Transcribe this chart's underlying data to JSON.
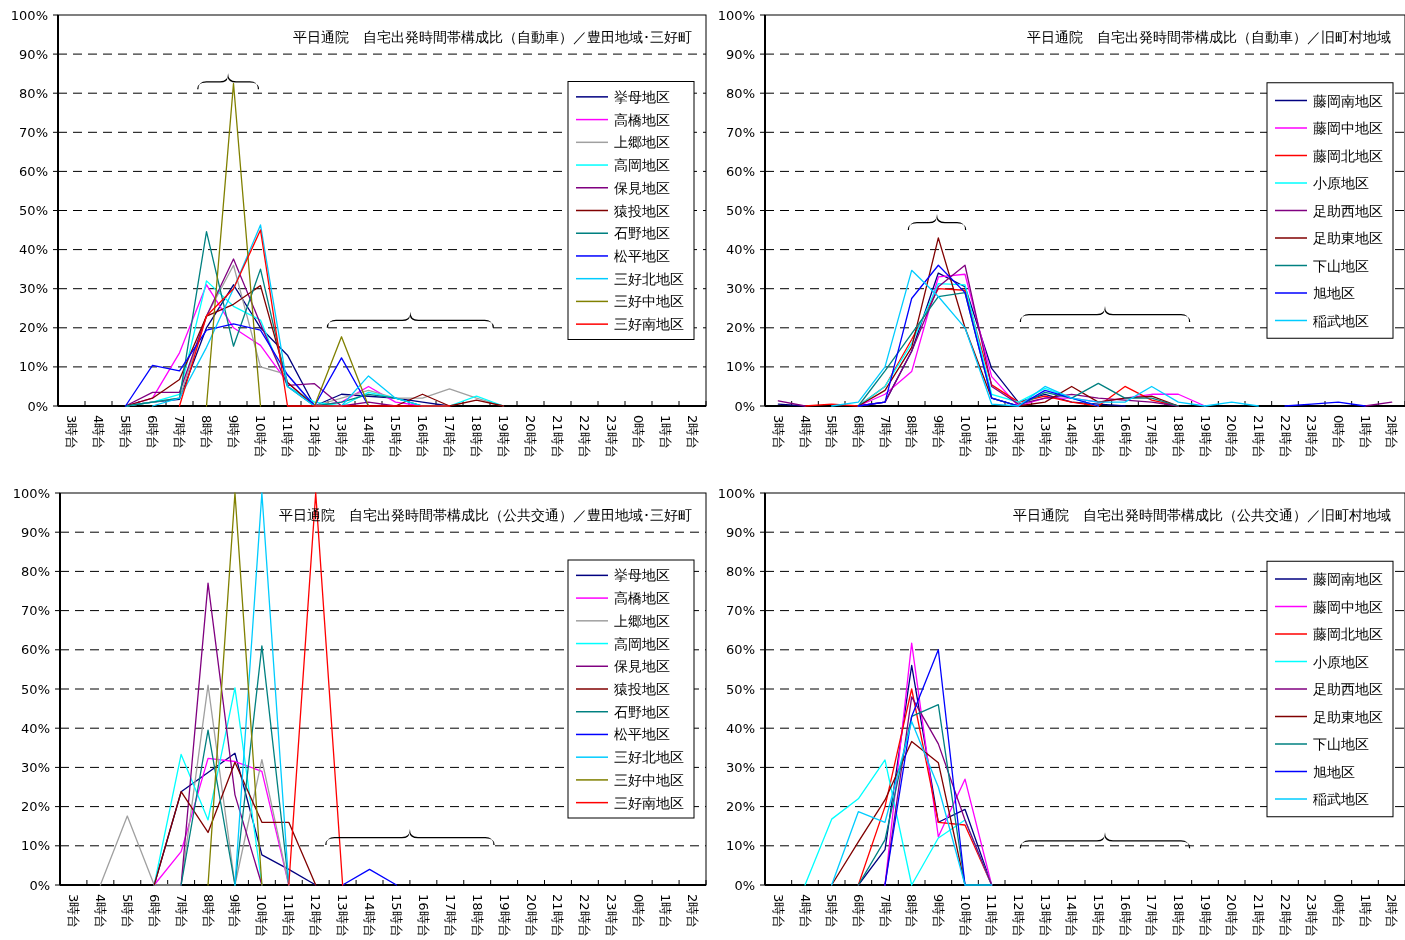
{
  "chart_data": [
    {
      "type": "line",
      "title": "平日通院　自宅出発時間帯構成比（自動車）／豊田地域･三好町",
      "categories": [
        "3時台",
        "4時台",
        "5時台",
        "6時台",
        "7時台",
        "8時台",
        "9時台",
        "10時台",
        "11時台",
        "12時台",
        "13時台",
        "14時台",
        "15時台",
        "16時台",
        "17時台",
        "18時台",
        "19時台",
        "20時台",
        "21時台",
        "22時台",
        "23時台",
        "0時台",
        "1時台",
        "2時台"
      ],
      "ylim": [
        0,
        100
      ],
      "yticks": [
        {
          "value": 0,
          "label": "0%"
        },
        {
          "value": 10,
          "label": "10%"
        },
        {
          "value": 20,
          "label": "20%"
        },
        {
          "value": 30,
          "label": "30%"
        },
        {
          "value": 40,
          "label": "40%"
        },
        {
          "value": 50,
          "label": "50%"
        },
        {
          "value": 60,
          "label": "60%"
        },
        {
          "value": 70,
          "label": "70%"
        },
        {
          "value": 80,
          "label": "80%"
        },
        {
          "value": 90,
          "label": "90%"
        },
        {
          "value": 100,
          "label": "100%"
        }
      ],
      "grid": "y",
      "legend": "right",
      "series": [
        {
          "name": "挙母地区",
          "color": "#000080",
          "values": [
            null,
            null,
            0,
            1,
            1.7,
            20,
            31,
            20,
            13,
            0,
            3,
            2.5,
            2,
            1,
            0,
            null,
            null,
            null,
            null,
            null,
            null,
            null,
            null,
            null
          ]
        },
        {
          "name": "高橋地区",
          "color": "#ff00ff",
          "values": [
            null,
            null,
            0,
            2,
            13.6,
            31,
            20,
            15.5,
            6,
            0,
            1,
            5,
            1,
            0,
            null,
            null,
            null,
            null,
            null,
            null,
            null,
            null,
            null,
            null
          ]
        },
        {
          "name": "上郷地区",
          "color": "#a0a0a0",
          "values": [
            null,
            null,
            0,
            1,
            2,
            23,
            36,
            10,
            8,
            0,
            2,
            4,
            2,
            2,
            4.4,
            2,
            0,
            null,
            null,
            null,
            null,
            null,
            null,
            null
          ]
        },
        {
          "name": "高岡地区",
          "color": "#00ffff",
          "values": [
            null,
            null,
            0,
            1,
            3,
            32,
            25.5,
            22,
            5,
            1,
            0,
            3.5,
            2,
            0,
            0,
            2.5,
            0,
            null,
            null,
            null,
            null,
            null,
            null,
            null
          ]
        },
        {
          "name": "保見地区",
          "color": "#800080",
          "values": [
            null,
            null,
            0,
            3.5,
            3.5,
            23,
            37.6,
            21,
            5.3,
            5.7,
            0,
            1,
            0,
            null,
            null,
            null,
            null,
            null,
            null,
            null,
            null,
            null,
            null,
            null
          ]
        },
        {
          "name": "猿投地区",
          "color": "#800000",
          "values": [
            null,
            null,
            0,
            2,
            6.8,
            23,
            26,
            30.8,
            6,
            0,
            null,
            null,
            0,
            3,
            0,
            1.5,
            0,
            null,
            null,
            null,
            null,
            null,
            null,
            null
          ]
        },
        {
          "name": "石野地区",
          "color": "#008080",
          "values": [
            null,
            null,
            0,
            1,
            2,
            44.6,
            15.3,
            35,
            5,
            0,
            1,
            3,
            2,
            0,
            null,
            null,
            null,
            null,
            null,
            null,
            null,
            null,
            null,
            null
          ]
        },
        {
          "name": "松平地区",
          "color": "#0000ff",
          "values": [
            null,
            null,
            0,
            10.4,
            9,
            19.4,
            21,
            19.4,
            8,
            0,
            12.3,
            0,
            null,
            null,
            null,
            null,
            null,
            null,
            null,
            null,
            null,
            null,
            null,
            null
          ]
        },
        {
          "name": "三好北地区",
          "color": "#00ccff",
          "values": [
            null,
            null,
            null,
            0,
            2,
            15,
            30,
            46.3,
            5,
            0,
            0,
            7.7,
            2,
            0,
            null,
            null,
            null,
            null,
            null,
            null,
            null,
            null,
            null,
            null
          ]
        },
        {
          "name": "三好中地区",
          "color": "#808000",
          "values": [
            null,
            null,
            null,
            null,
            null,
            0,
            82.5,
            0,
            null,
            0,
            17.7,
            0,
            null,
            null,
            null,
            null,
            null,
            null,
            null,
            null,
            null,
            null,
            null,
            null
          ]
        },
        {
          "name": "三好南地区",
          "color": "#ff0000",
          "values": [
            null,
            null,
            null,
            null,
            0,
            23,
            30,
            45,
            0,
            0,
            0,
            0,
            0,
            0,
            0,
            null,
            null,
            null,
            null,
            null,
            null,
            null,
            null,
            null
          ]
        }
      ]
    },
    {
      "type": "line",
      "title": "平日通院　自宅出発時間帯構成比（自動車）／旧町村地域",
      "categories": [
        "3時台",
        "4時台",
        "5時台",
        "6時台",
        "7時台",
        "8時台",
        "9時台",
        "10時台",
        "11時台",
        "12時台",
        "13時台",
        "14時台",
        "15時台",
        "16時台",
        "17時台",
        "18時台",
        "19時台",
        "20時台",
        "21時台",
        "22時台",
        "23時台",
        "0時台",
        "1時台",
        "2時台"
      ],
      "ylim": [
        0,
        100
      ],
      "yticks": [
        {
          "value": 0,
          "label": "0%"
        },
        {
          "value": 10,
          "label": "10%"
        },
        {
          "value": 20,
          "label": "20%"
        },
        {
          "value": 30,
          "label": "30%"
        },
        {
          "value": 40,
          "label": "40%"
        },
        {
          "value": 50,
          "label": "50%"
        },
        {
          "value": 60,
          "label": "60%"
        },
        {
          "value": 70,
          "label": "70%"
        },
        {
          "value": 80,
          "label": "80%"
        },
        {
          "value": 90,
          "label": "90%"
        },
        {
          "value": 100,
          "label": "100%"
        }
      ],
      "grid": "y",
      "legend": "right",
      "series": [
        {
          "name": "藤岡南地区",
          "color": "#000080",
          "values": [
            0.5,
            0,
            null,
            0,
            1,
            14,
            34,
            30.5,
            9.6,
            1,
            3,
            1,
            0.5,
            0,
            null,
            null,
            null,
            null,
            null,
            null,
            null,
            null,
            null,
            null
          ]
        },
        {
          "name": "藤岡中地区",
          "color": "#ff00ff",
          "values": [
            null,
            null,
            null,
            0,
            3,
            8.8,
            33,
            33.7,
            7.5,
            0,
            2,
            2,
            1,
            2,
            3,
            3,
            0,
            null,
            null,
            null,
            null,
            null,
            null,
            null
          ]
        },
        {
          "name": "藤岡北地区",
          "color": "#ff0000",
          "values": [
            null,
            0,
            0.5,
            0,
            5,
            17,
            30,
            29.6,
            5.4,
            1,
            2.5,
            1,
            0,
            5,
            1.5,
            0,
            null,
            null,
            null,
            null,
            null,
            null,
            null,
            null
          ]
        },
        {
          "name": "小原地区",
          "color": "#00ffff",
          "values": [
            null,
            null,
            null,
            0,
            5,
            16,
            31.3,
            31,
            3,
            1,
            4.5,
            2,
            0,
            null,
            null,
            null,
            null,
            null,
            null,
            null,
            null,
            null,
            null,
            null
          ]
        },
        {
          "name": "足助西地区",
          "color": "#800080",
          "values": [
            1.3,
            0,
            null,
            0,
            1,
            14,
            30.5,
            36,
            5,
            0.5,
            2,
            3,
            2,
            1.5,
            1,
            0,
            null,
            null,
            null,
            null,
            null,
            null,
            0,
            1
          ]
        },
        {
          "name": "足助東地区",
          "color": "#800000",
          "values": [
            null,
            null,
            null,
            0,
            4,
            15,
            43,
            20,
            2,
            0,
            1,
            5,
            1,
            2,
            2.5,
            0,
            null,
            null,
            null,
            null,
            null,
            null,
            null,
            null
          ]
        },
        {
          "name": "下山地区",
          "color": "#008080",
          "values": [
            null,
            null,
            null,
            0,
            9,
            18.5,
            28,
            29,
            2,
            0,
            3.5,
            2,
            5.8,
            2,
            2,
            0,
            null,
            null,
            null,
            null,
            null,
            null,
            null,
            null
          ]
        },
        {
          "name": "旭地区",
          "color": "#0000ff",
          "values": [
            null,
            null,
            null,
            0,
            1,
            27.5,
            36,
            29,
            2,
            0,
            4,
            2,
            0,
            null,
            null,
            null,
            null,
            null,
            null,
            0,
            0.5,
            1,
            0,
            null
          ]
        },
        {
          "name": "稲武地区",
          "color": "#00ccff",
          "values": [
            null,
            null,
            0,
            1,
            10,
            34.7,
            28,
            20,
            0.5,
            0,
            5,
            2,
            1,
            1,
            5,
            1,
            0,
            1,
            0,
            null,
            null,
            null,
            null,
            null
          ]
        }
      ]
    },
    {
      "type": "line",
      "title": "平日通院　自宅出発時間帯構成比（公共交通）／豊田地域･三好町",
      "categories": [
        "3時台",
        "4時台",
        "5時台",
        "6時台",
        "7時台",
        "8時台",
        "9時台",
        "10時台",
        "11時台",
        "12時台",
        "13時台",
        "14時台",
        "15時台",
        "16時台",
        "17時台",
        "18時台",
        "19時台",
        "20時台",
        "21時台",
        "22時台",
        "23時台",
        "0時台",
        "1時台",
        "2時台"
      ],
      "ylim": [
        0,
        100
      ],
      "yticks": [
        {
          "value": 0,
          "label": "0%"
        },
        {
          "value": 10,
          "label": "10%"
        },
        {
          "value": 20,
          "label": "20%"
        },
        {
          "value": 30,
          "label": "30%"
        },
        {
          "value": 40,
          "label": "40%"
        },
        {
          "value": 50,
          "label": "50%"
        },
        {
          "value": 60,
          "label": "60%"
        },
        {
          "value": 70,
          "label": "70%"
        },
        {
          "value": 80,
          "label": "80%"
        },
        {
          "value": 90,
          "label": "90%"
        },
        {
          "value": 100,
          "label": "100%"
        }
      ],
      "grid": "y",
      "legend": "right",
      "series": [
        {
          "name": "挙母地区",
          "color": "#000080",
          "values": [
            null,
            null,
            null,
            0,
            23.8,
            28.7,
            33.6,
            7.7,
            4,
            0,
            null,
            null,
            null,
            null,
            null,
            null,
            null,
            null,
            null,
            null,
            null,
            null,
            null,
            null
          ]
        },
        {
          "name": "高橋地区",
          "color": "#ff00ff",
          "values": [
            null,
            null,
            null,
            0,
            8.5,
            32.3,
            31.5,
            29,
            0,
            null,
            null,
            null,
            null,
            null,
            null,
            null,
            null,
            null,
            null,
            null,
            null,
            null,
            null,
            null
          ]
        },
        {
          "name": "上郷地区",
          "color": "#a0a0a0",
          "values": [
            null,
            0,
            17.6,
            0,
            0,
            51,
            0,
            32,
            0,
            null,
            null,
            null,
            null,
            null,
            null,
            null,
            null,
            null,
            null,
            null,
            null,
            null,
            null,
            null
          ]
        },
        {
          "name": "高岡地区",
          "color": "#00ffff",
          "values": [
            null,
            null,
            null,
            0,
            33.3,
            16.6,
            50.3,
            0,
            null,
            null,
            null,
            null,
            null,
            null,
            null,
            null,
            null,
            null,
            null,
            null,
            null,
            null,
            null,
            null
          ]
        },
        {
          "name": "保見地区",
          "color": "#800080",
          "values": [
            null,
            null,
            null,
            null,
            0,
            77,
            23,
            0,
            null,
            null,
            null,
            null,
            null,
            null,
            null,
            null,
            null,
            null,
            null,
            null,
            null,
            null,
            null,
            null
          ]
        },
        {
          "name": "猿投地区",
          "color": "#800000",
          "values": [
            null,
            null,
            null,
            0,
            23.8,
            13.4,
            31.3,
            16,
            16,
            0,
            null,
            null,
            null,
            null,
            null,
            null,
            null,
            null,
            null,
            null,
            null,
            null,
            null,
            null
          ]
        },
        {
          "name": "石野地区",
          "color": "#008080",
          "values": [
            null,
            null,
            null,
            null,
            0,
            39.5,
            0,
            61,
            0,
            null,
            null,
            null,
            null,
            null,
            null,
            null,
            null,
            null,
            null,
            null,
            null,
            null,
            null,
            null
          ]
        },
        {
          "name": "松平地区",
          "color": "#0000ff",
          "values": [
            null,
            null,
            null,
            null,
            null,
            null,
            null,
            null,
            null,
            null,
            0,
            4,
            0,
            null,
            null,
            null,
            null,
            null,
            null,
            null,
            null,
            null,
            null,
            null
          ]
        },
        {
          "name": "三好北地区",
          "color": "#00ccff",
          "values": [
            null,
            null,
            null,
            null,
            null,
            null,
            0,
            100,
            0,
            null,
            null,
            null,
            null,
            null,
            null,
            null,
            null,
            null,
            null,
            null,
            null,
            null,
            null,
            null
          ]
        },
        {
          "name": "三好中地区",
          "color": "#808000",
          "values": [
            null,
            null,
            null,
            null,
            null,
            0,
            100,
            0,
            null,
            null,
            null,
            null,
            null,
            null,
            null,
            null,
            null,
            null,
            null,
            null,
            null,
            null,
            null,
            null
          ]
        },
        {
          "name": "三好南地区",
          "color": "#ff0000",
          "values": [
            null,
            null,
            null,
            null,
            null,
            null,
            null,
            null,
            0,
            100,
            0,
            null,
            null,
            null,
            null,
            null,
            null,
            null,
            null,
            null,
            null,
            null,
            null,
            null
          ]
        }
      ]
    },
    {
      "type": "line",
      "title": "平日通院　自宅出発時間帯構成比（公共交通）／旧町村地域",
      "categories": [
        "3時台",
        "4時台",
        "5時台",
        "6時台",
        "7時台",
        "8時台",
        "9時台",
        "10時台",
        "11時台",
        "12時台",
        "13時台",
        "14時台",
        "15時台",
        "16時台",
        "17時台",
        "18時台",
        "19時台",
        "20時台",
        "21時台",
        "22時台",
        "23時台",
        "0時台",
        "1時台",
        "2時台"
      ],
      "ylim": [
        0,
        100
      ],
      "yticks": [
        {
          "value": 0,
          "label": "0%"
        },
        {
          "value": 10,
          "label": "10%"
        },
        {
          "value": 20,
          "label": "20%"
        },
        {
          "value": 30,
          "label": "30%"
        },
        {
          "value": 40,
          "label": "40%"
        },
        {
          "value": 50,
          "label": "50%"
        },
        {
          "value": 60,
          "label": "60%"
        },
        {
          "value": 70,
          "label": "70%"
        },
        {
          "value": 80,
          "label": "80%"
        },
        {
          "value": 90,
          "label": "90%"
        },
        {
          "value": 100,
          "label": "100%"
        }
      ],
      "grid": "y",
      "legend": "right",
      "series": [
        {
          "name": "藤岡南地区",
          "color": "#000080",
          "values": [
            null,
            null,
            null,
            0,
            9,
            56,
            16,
            19.3,
            0,
            null,
            null,
            null,
            null,
            null,
            null,
            null,
            null,
            null,
            null,
            null,
            null,
            null,
            null,
            null
          ]
        },
        {
          "name": "藤岡中地区",
          "color": "#ff00ff",
          "values": [
            null,
            null,
            null,
            null,
            0,
            61.7,
            12.3,
            27,
            0,
            null,
            null,
            null,
            null,
            null,
            null,
            null,
            null,
            null,
            null,
            null,
            null,
            null,
            null,
            null
          ]
        },
        {
          "name": "藤岡北地区",
          "color": "#ff0000",
          "values": [
            null,
            null,
            null,
            0,
            20,
            50,
            16,
            15.3,
            0,
            null,
            null,
            null,
            null,
            null,
            null,
            null,
            null,
            null,
            null,
            null,
            null,
            null,
            null,
            null
          ]
        },
        {
          "name": "小原地区",
          "color": "#00ffff",
          "values": [
            null,
            0,
            16.8,
            22,
            31.9,
            0,
            12,
            16.6,
            0,
            null,
            null,
            null,
            null,
            null,
            null,
            null,
            null,
            null,
            null,
            null,
            null,
            null,
            null,
            null
          ]
        },
        {
          "name": "足助西地区",
          "color": "#800080",
          "values": [
            null,
            null,
            null,
            null,
            0,
            48,
            36,
            16.6,
            0,
            null,
            null,
            null,
            null,
            null,
            null,
            null,
            null,
            null,
            null,
            null,
            null,
            null,
            null,
            null
          ]
        },
        {
          "name": "足助東地区",
          "color": "#800000",
          "values": [
            null,
            null,
            0,
            11,
            21.7,
            36.6,
            31.2,
            0,
            null,
            null,
            null,
            null,
            null,
            null,
            null,
            null,
            null,
            null,
            null,
            null,
            null,
            null,
            null,
            null
          ]
        },
        {
          "name": "下山地区",
          "color": "#008080",
          "values": [
            null,
            null,
            null,
            0,
            11.5,
            43,
            46,
            0,
            null,
            null,
            null,
            null,
            null,
            null,
            null,
            null,
            null,
            null,
            null,
            null,
            null,
            null,
            null,
            null
          ]
        },
        {
          "name": "旭地区",
          "color": "#0000ff",
          "values": [
            null,
            null,
            null,
            null,
            0,
            43,
            60,
            0,
            null,
            null,
            null,
            null,
            null,
            null,
            null,
            null,
            null,
            null,
            null,
            null,
            null,
            null,
            null,
            null
          ]
        },
        {
          "name": "稲武地区",
          "color": "#00ccff",
          "values": [
            null,
            null,
            0,
            18.7,
            16,
            41.7,
            25,
            0,
            0,
            null,
            null,
            null,
            null,
            null,
            null,
            null,
            null,
            null,
            null,
            null,
            null,
            null,
            null,
            null
          ]
        }
      ]
    }
  ]
}
